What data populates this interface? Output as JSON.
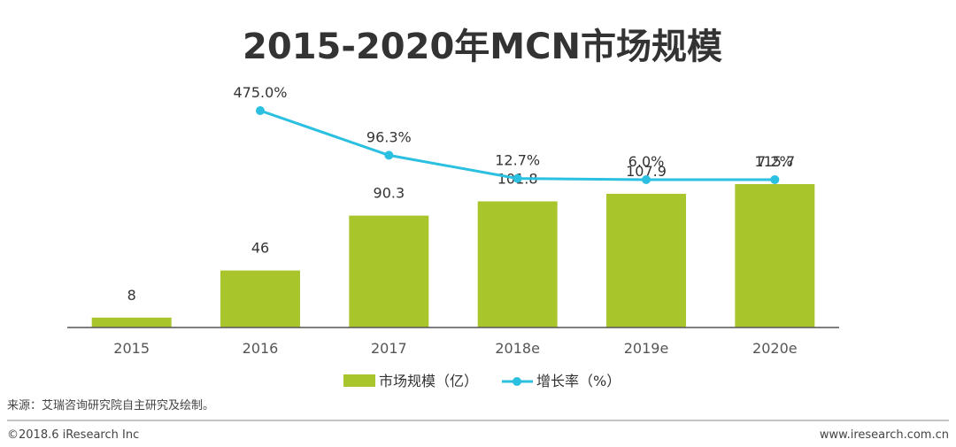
{
  "chart_data": {
    "type": "bar+line",
    "title": "2015-2020年MCN市场规模",
    "categories": [
      "2015",
      "2016",
      "2017",
      "2018e",
      "2019e",
      "2020e"
    ],
    "series": [
      {
        "name": "市场规模（亿）",
        "type": "bar",
        "values": [
          8,
          46,
          90.3,
          101.8,
          107.9,
          115.7
        ],
        "labels": [
          "8",
          "46",
          "90.3",
          "101.8",
          "107.9",
          "115.7"
        ],
        "color": "#a8c62b"
      },
      {
        "name": "增长率（%）",
        "type": "line",
        "values": [
          null,
          475.0,
          96.3,
          12.7,
          6.0,
          7.2
        ],
        "labels": [
          "",
          "475.0%",
          "96.3%",
          "12.7%",
          "6.0%",
          "7.2%"
        ],
        "color": "#2bbfe0"
      }
    ],
    "ylim_bar": [
      0,
      150
    ],
    "ylim_line": [
      0,
      560
    ],
    "grid": false,
    "legend_placement": "bottom"
  },
  "footer": {
    "source": "来源：艾瑞咨询研究院自主研究及绘制。",
    "copyright": "©2018.6 iResearch Inc",
    "website": "www.iresearch.com.cn"
  },
  "colors": {
    "bar": "#a8c62b",
    "line": "#2bbfe0",
    "axis": "#555555",
    "text": "#333333"
  }
}
